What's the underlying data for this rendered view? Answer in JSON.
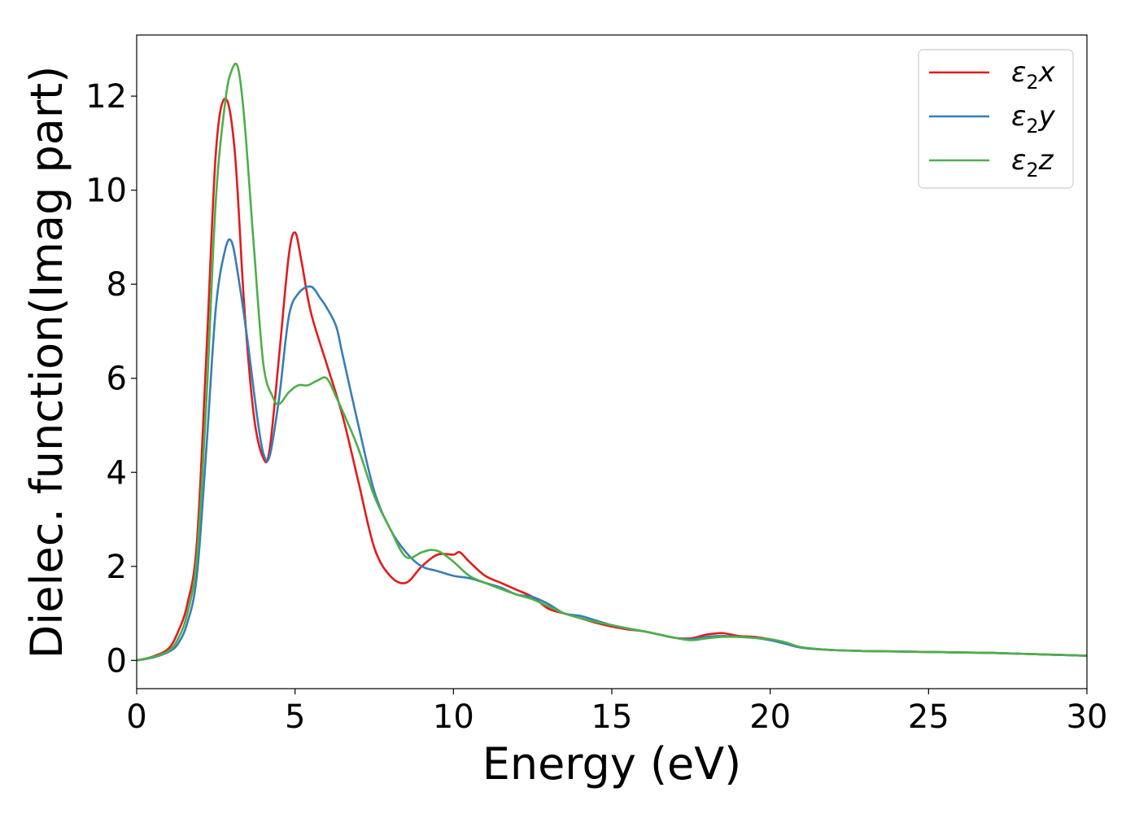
{
  "chart_data": {
    "type": "line",
    "title": "",
    "xlabel": "Energy (eV)",
    "ylabel": "Dielec. function(Imag part)",
    "xlim": [
      0,
      30
    ],
    "ylim": [
      -0.6,
      13.3
    ],
    "xticks": [
      0,
      5,
      10,
      15,
      20,
      25,
      30
    ],
    "xtick_labels": [
      "0",
      "5",
      "10",
      "15",
      "20",
      "25",
      "30"
    ],
    "yticks": [
      0,
      2,
      4,
      6,
      8,
      10,
      12
    ],
    "ytick_labels": [
      "0",
      "2",
      "4",
      "6",
      "8",
      "10",
      "12"
    ],
    "grid": false,
    "legend_position": "top-right",
    "series": [
      {
        "name": "ε₂x",
        "legend_base": "ε",
        "legend_sub": "2",
        "legend_tail": "x",
        "color": "#e41a1c",
        "x": [
          0,
          0.5,
          1.0,
          1.3,
          1.6,
          1.9,
          2.2,
          2.5,
          2.8,
          3.1,
          3.4,
          3.7,
          4.0,
          4.2,
          4.5,
          4.8,
          5.0,
          5.2,
          5.5,
          6.0,
          6.5,
          7.0,
          7.5,
          8.0,
          8.5,
          9.0,
          9.5,
          10.0,
          10.2,
          10.5,
          11.0,
          11.5,
          12.0,
          12.5,
          13.0,
          13.5,
          14.0,
          14.5,
          15.0,
          15.5,
          16.0,
          16.5,
          17.0,
          17.5,
          18.0,
          18.5,
          19.0,
          19.5,
          20.0,
          20.5,
          21.0,
          22.0,
          23.0,
          24.0,
          25.0,
          26.0,
          27.0,
          28.0,
          29.0,
          30.0
        ],
        "y": [
          0,
          0.08,
          0.25,
          0.6,
          1.2,
          2.5,
          6.5,
          10.8,
          11.95,
          10.8,
          7.5,
          5.2,
          4.3,
          4.5,
          6.5,
          8.6,
          9.1,
          8.5,
          7.4,
          6.3,
          5.2,
          3.8,
          2.4,
          1.8,
          1.65,
          2.0,
          2.25,
          2.25,
          2.3,
          2.1,
          1.8,
          1.65,
          1.5,
          1.35,
          1.1,
          1.0,
          0.9,
          0.8,
          0.72,
          0.66,
          0.62,
          0.55,
          0.48,
          0.47,
          0.55,
          0.58,
          0.52,
          0.5,
          0.45,
          0.38,
          0.27,
          0.22,
          0.2,
          0.19,
          0.18,
          0.17,
          0.16,
          0.14,
          0.12,
          0.1
        ]
      },
      {
        "name": "ε₂y",
        "legend_base": "ε",
        "legend_sub": "2",
        "legend_tail": "y",
        "color": "#377eb8",
        "x": [
          0,
          0.5,
          1.0,
          1.3,
          1.6,
          1.9,
          2.2,
          2.5,
          2.8,
          3.0,
          3.2,
          3.5,
          3.8,
          4.0,
          4.2,
          4.5,
          4.8,
          5.1,
          5.5,
          5.8,
          6.0,
          6.3,
          6.5,
          7.0,
          7.5,
          8.0,
          8.5,
          9.0,
          9.5,
          10.0,
          10.5,
          11.0,
          11.5,
          12.0,
          12.5,
          13.0,
          13.5,
          14.0,
          14.5,
          15.0,
          15.5,
          16.0,
          16.5,
          17.0,
          17.5,
          18.0,
          18.5,
          19.0,
          19.5,
          20.0,
          20.5,
          21.0,
          22.0,
          23.0,
          24.0,
          25.0,
          26.0,
          27.0,
          28.0,
          29.0,
          30.0
        ],
        "y": [
          0,
          0.06,
          0.18,
          0.35,
          0.8,
          1.8,
          4.5,
          7.5,
          8.75,
          8.9,
          8.2,
          6.8,
          5.2,
          4.4,
          4.35,
          5.6,
          7.3,
          7.8,
          7.95,
          7.7,
          7.5,
          7.1,
          6.5,
          5.0,
          3.6,
          2.8,
          2.3,
          2.0,
          1.9,
          1.8,
          1.75,
          1.65,
          1.55,
          1.4,
          1.35,
          1.2,
          1.0,
          0.95,
          0.85,
          0.75,
          0.68,
          0.62,
          0.55,
          0.48,
          0.45,
          0.5,
          0.52,
          0.5,
          0.48,
          0.43,
          0.35,
          0.27,
          0.22,
          0.2,
          0.19,
          0.18,
          0.17,
          0.16,
          0.14,
          0.12,
          0.1
        ]
      },
      {
        "name": "ε₂z",
        "legend_base": "ε",
        "legend_sub": "2",
        "legend_tail": "z",
        "color": "#4daf4a",
        "x": [
          0,
          0.5,
          1.0,
          1.3,
          1.6,
          1.9,
          2.2,
          2.5,
          2.8,
          3.0,
          3.2,
          3.4,
          3.7,
          4.0,
          4.3,
          4.5,
          4.8,
          5.1,
          5.4,
          5.7,
          6.0,
          6.3,
          6.6,
          7.0,
          7.5,
          8.0,
          8.5,
          9.0,
          9.3,
          9.6,
          10.0,
          10.5,
          11.0,
          11.5,
          12.0,
          12.5,
          13.0,
          13.5,
          14.0,
          14.5,
          15.0,
          15.5,
          16.0,
          16.5,
          17.0,
          17.5,
          18.0,
          18.5,
          19.0,
          19.5,
          20.0,
          20.5,
          21.0,
          22.0,
          23.0,
          24.0,
          25.0,
          26.0,
          27.0,
          28.0,
          29.0,
          30.0
        ],
        "y": [
          0,
          0.07,
          0.2,
          0.45,
          1.0,
          2.2,
          5.5,
          9.8,
          11.9,
          12.55,
          12.6,
          11.5,
          8.8,
          6.3,
          5.6,
          5.45,
          5.7,
          5.85,
          5.85,
          5.95,
          6.0,
          5.6,
          5.15,
          4.5,
          3.5,
          2.8,
          2.2,
          2.3,
          2.35,
          2.3,
          2.1,
          1.8,
          1.65,
          1.52,
          1.4,
          1.3,
          1.15,
          1.0,
          0.9,
          0.82,
          0.75,
          0.68,
          0.62,
          0.55,
          0.48,
          0.43,
          0.47,
          0.5,
          0.5,
          0.48,
          0.45,
          0.38,
          0.28,
          0.22,
          0.2,
          0.19,
          0.18,
          0.17,
          0.16,
          0.14,
          0.12,
          0.1
        ]
      }
    ]
  }
}
